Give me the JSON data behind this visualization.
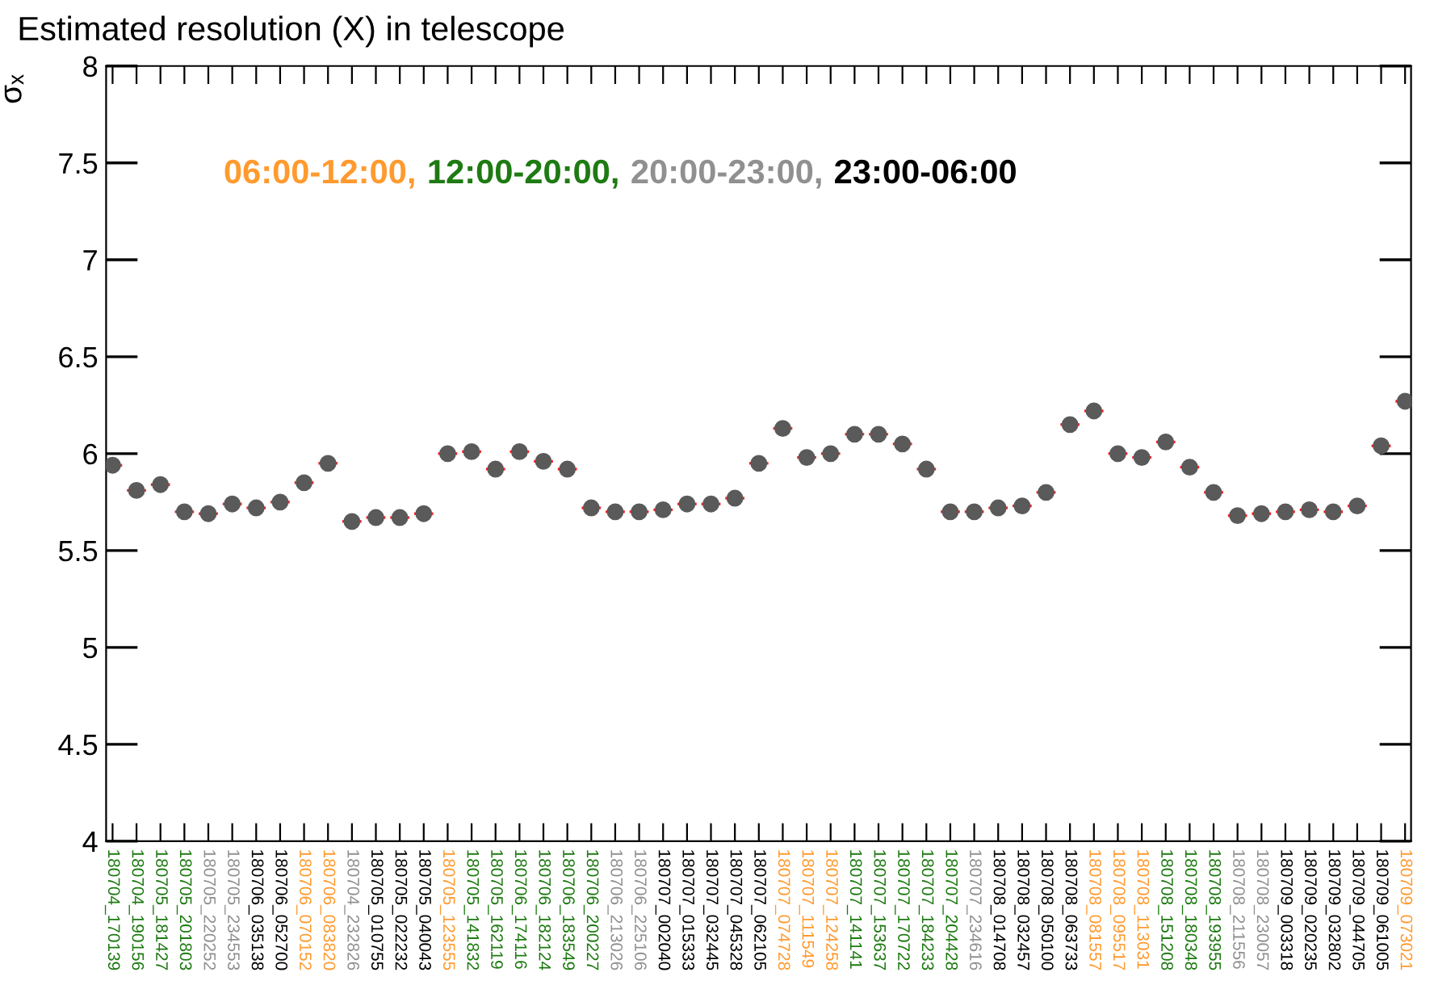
{
  "chart_data": {
    "type": "scatter",
    "title": "Estimated resolution (X) in telescope",
    "ylabel": "σₓ",
    "annotations": [
      "06:00-12:00,",
      "12:00-20:00,",
      "20:00-23:00,",
      "23:00-06:00"
    ],
    "categories": [
      "180704_170139",
      "180704_190156",
      "180705_181427",
      "180705_201803",
      "180705_220252",
      "180705_234553",
      "180706_035138",
      "180706_052700",
      "180706_070152",
      "180706_083820",
      "180704_232826",
      "180705_010755",
      "180705_022232",
      "180705_040043",
      "180705_123555",
      "180705_141832",
      "180705_162119",
      "180706_174116",
      "180706_182124",
      "180706_183549",
      "180706_200227",
      "180706_213026",
      "180706_225106",
      "180707_002040",
      "180707_015333",
      "180707_032445",
      "180707_045328",
      "180707_062105",
      "180707_074728",
      "180707_111549",
      "180707_124258",
      "180707_141141",
      "180707_153637",
      "180707_170722",
      "180707_184233",
      "180707_204428",
      "180707_234616",
      "180708_014708",
      "180708_032457",
      "180708_050100",
      "180708_063733",
      "180708_081557",
      "180708_095517",
      "180708_113031",
      "180708_151208",
      "180708_180348",
      "180708_193955",
      "180708_211556",
      "180708_230057",
      "180709_003318",
      "180709_020235",
      "180709_032802",
      "180709_044705",
      "180709_061005",
      "180709_073021"
    ],
    "series": [
      {
        "color": "#5a5a5a",
        "values": [
          5.94,
          5.81,
          5.84,
          5.7,
          5.69,
          5.74,
          5.72,
          5.75,
          5.85,
          5.95,
          5.65,
          5.67,
          5.67,
          5.69,
          6.0,
          6.01,
          5.92,
          6.01,
          5.96,
          5.92,
          5.72,
          5.7,
          5.7,
          5.71,
          5.74,
          5.74,
          5.77,
          5.95,
          6.13,
          5.98,
          6.0,
          6.1,
          6.1,
          6.05,
          5.92,
          5.7,
          5.7,
          5.72,
          5.73,
          5.8,
          6.15,
          6.22,
          6.0,
          5.98,
          6.06,
          5.93,
          5.8,
          5.68,
          5.69,
          5.7,
          5.71,
          5.7,
          5.73,
          6.04,
          6.27
        ]
      }
    ],
    "ylim": [
      4,
      8
    ],
    "yticks": [
      4,
      4.5,
      5,
      5.5,
      6,
      6.5,
      7,
      7.5,
      8
    ],
    "marker": "circle",
    "grid": false,
    "legend": false
  }
}
